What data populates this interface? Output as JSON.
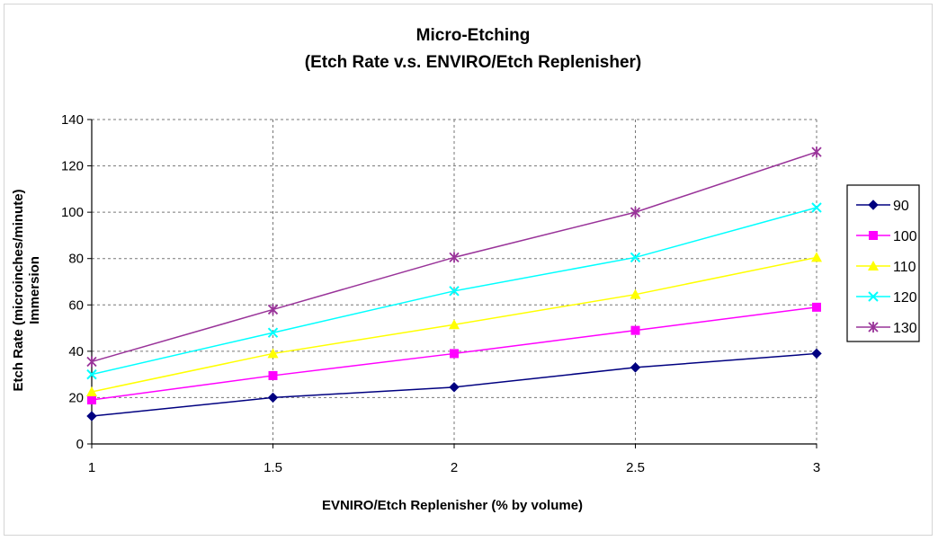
{
  "chart_data": {
    "type": "line",
    "title": "Micro-Etching",
    "subtitle": "(Etch Rate v.s. ENVIRO/Etch Replenisher)",
    "xlabel": "EVNIRO/Etch Replenisher (% by volume)",
    "ylabel": "Etch Rate (microinches/minute)",
    "ylabel2": "Immersion",
    "x": [
      1,
      1.5,
      2,
      2.5,
      3
    ],
    "x_tick_labels": [
      "1",
      "1.5",
      "2",
      "2.5",
      "3"
    ],
    "y_tick_labels": [
      "0",
      "20",
      "40",
      "60",
      "80",
      "100",
      "120",
      "140"
    ],
    "xlim": [
      1,
      3
    ],
    "ylim": [
      0,
      140
    ],
    "grid": "dashed",
    "legend_position": "right",
    "series": [
      {
        "name": "90",
        "values": [
          12,
          20,
          24.5,
          33,
          39
        ],
        "color": "#000080",
        "marker": "diamond"
      },
      {
        "name": "100",
        "values": [
          19,
          29.5,
          39,
          49,
          59
        ],
        "color": "#ff00ff",
        "marker": "square"
      },
      {
        "name": "110",
        "values": [
          22.5,
          39,
          51.5,
          64.5,
          80.5
        ],
        "color": "#ffff00",
        "marker": "triangle"
      },
      {
        "name": "120",
        "values": [
          30,
          48,
          66,
          80.5,
          102
        ],
        "color": "#00ffff",
        "marker": "x"
      },
      {
        "name": "130",
        "values": [
          35.5,
          58,
          80.5,
          100,
          126
        ],
        "color": "#993399",
        "marker": "star"
      }
    ]
  }
}
